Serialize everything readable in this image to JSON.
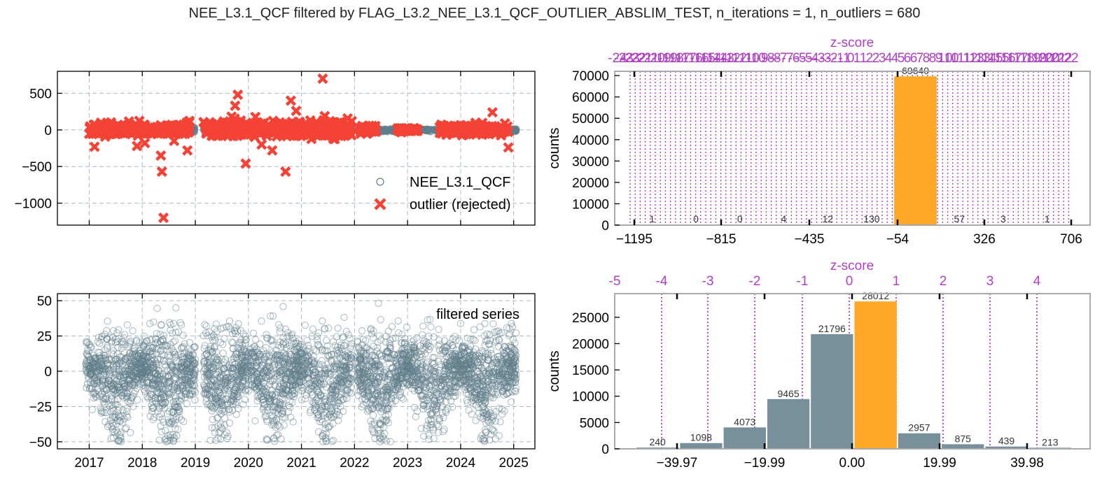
{
  "suptitle": "NEE_L3.1_QCF filtered by FLAG_L3.2_NEE_L3.1_QCF_OUTLIER_ABSLIM_TEST, n_iterations = 1, n_outliers = 680",
  "colors": {
    "series": "#607d8b",
    "outlier": "#f44336",
    "bar": "#78909c",
    "bar_highlight": "#ffa726",
    "zscore": "#b13fc6",
    "grid": "#a9bcc4"
  },
  "chart_data": [
    {
      "id": "timeseries-top",
      "type": "scatter",
      "xlim": [
        2016.4,
        2025.4
      ],
      "ylim": [
        -1300,
        800
      ],
      "x_ticks": [
        "2017",
        "2018",
        "2019",
        "2020",
        "2021",
        "2022",
        "2023",
        "2024",
        "2025"
      ],
      "y_ticks": [
        500,
        0,
        -500,
        -1000
      ],
      "y_tick_labels": [
        "500",
        "0",
        "−500",
        "−1000"
      ],
      "grid": true,
      "legend": {
        "placement": "lower-right",
        "entries": [
          "NEE_L3.1_QCF",
          "outlier (rejected)"
        ]
      },
      "outliers": [
        {
          "x": 2017.1,
          "y": -230
        },
        {
          "x": 2017.5,
          "y": -60
        },
        {
          "x": 2017.9,
          "y": -220
        },
        {
          "x": 2018.05,
          "y": -180
        },
        {
          "x": 2018.35,
          "y": -350
        },
        {
          "x": 2018.37,
          "y": -570
        },
        {
          "x": 2018.4,
          "y": -1200
        },
        {
          "x": 2018.6,
          "y": -150
        },
        {
          "x": 2018.85,
          "y": -280
        },
        {
          "x": 2019.8,
          "y": 480
        },
        {
          "x": 2019.75,
          "y": 330
        },
        {
          "x": 2019.95,
          "y": -460
        },
        {
          "x": 2020.25,
          "y": -200
        },
        {
          "x": 2020.45,
          "y": -280
        },
        {
          "x": 2020.7,
          "y": -570
        },
        {
          "x": 2020.8,
          "y": 400
        },
        {
          "x": 2020.9,
          "y": 260
        },
        {
          "x": 2021.4,
          "y": 700
        },
        {
          "x": 2021.6,
          "y": -120
        },
        {
          "x": 2024.6,
          "y": 240
        },
        {
          "x": 2024.9,
          "y": -240
        }
      ]
    },
    {
      "id": "histogram-top",
      "type": "bar",
      "ylabel": "counts",
      "zlabel": "z-score",
      "ylim": [
        0,
        72000
      ],
      "y_ticks": [
        0,
        10000,
        20000,
        30000,
        40000,
        50000,
        60000,
        70000
      ],
      "x_tick_labels": [
        "−1195",
        "−815",
        "−435",
        "−54",
        "326",
        "706"
      ],
      "bar_counts": [
        1,
        0,
        0,
        4,
        12,
        130,
        69640,
        57,
        3,
        1
      ],
      "highlight_index": 6
    },
    {
      "id": "timeseries-bottom",
      "type": "scatter",
      "xlim": [
        2016.4,
        2025.4
      ],
      "ylim": [
        -55,
        55
      ],
      "x_ticks": [
        "2017",
        "2018",
        "2019",
        "2020",
        "2021",
        "2022",
        "2023",
        "2024",
        "2025"
      ],
      "y_ticks": [
        50,
        25,
        0,
        -25,
        -50
      ],
      "y_tick_labels": [
        "50",
        "25",
        "0",
        "−25",
        "−50"
      ],
      "grid": true,
      "annotation": "filtered series",
      "gaps": [
        [
          2019.0,
          2019.15
        ],
        [
          2021.95,
          2022.05
        ]
      ]
    },
    {
      "id": "histogram-bottom",
      "type": "bar",
      "ylabel": "counts",
      "zlabel": "z-score",
      "ylim": [
        0,
        29500
      ],
      "y_ticks": [
        0,
        5000,
        10000,
        15000,
        20000,
        25000
      ],
      "x_tick_labels": [
        "−39.97",
        "−19.99",
        "0.00",
        "19.99",
        "39.98"
      ],
      "z_tick_labels": [
        "-5",
        "-4",
        "-3",
        "-2",
        "-1",
        "0",
        "1",
        "2",
        "3",
        "4"
      ],
      "bar_counts": [
        240,
        1098,
        4073,
        9465,
        21796,
        28012,
        2957,
        875,
        439,
        213
      ],
      "highlight_index": 5
    }
  ]
}
